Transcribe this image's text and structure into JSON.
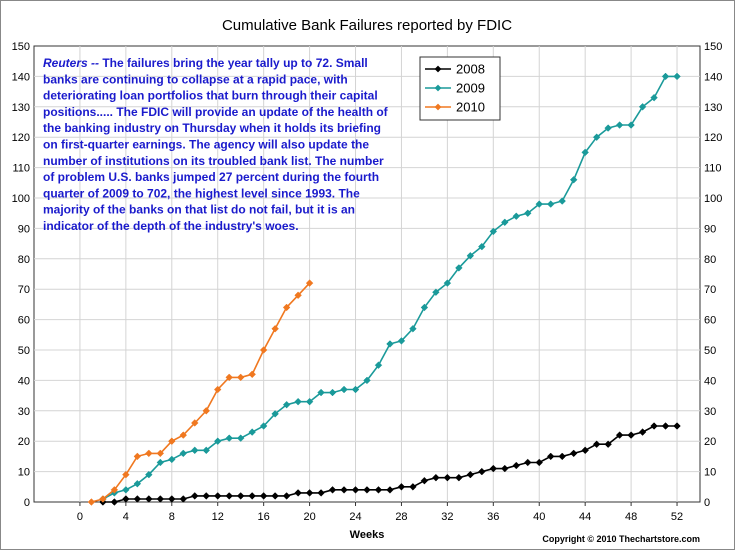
{
  "chart_data": {
    "type": "line",
    "title": "Cumulative Bank Failures reported by FDIC",
    "xlabel": "Weeks",
    "ylabel": "",
    "xlim": [
      -4,
      54
    ],
    "ylim": [
      0,
      150
    ],
    "x_ticks": [
      0,
      4,
      8,
      12,
      16,
      20,
      24,
      28,
      32,
      36,
      40,
      44,
      48,
      52
    ],
    "y_ticks": [
      0,
      10,
      20,
      30,
      40,
      50,
      60,
      70,
      80,
      90,
      100,
      110,
      120,
      130,
      140,
      150
    ],
    "grid": true,
    "legend_position": "top-center",
    "annotation": {
      "source": "Reuters --",
      "lines": [
        "The failures bring the year tally up to 72.  Small",
        "banks are continuing to collapse at a rapid pace, with",
        "deteriorating loan portfolios that burn through their capital",
        "positions.....  The FDIC will provide an update of the health of",
        "the banking industry on Thursday when it holds its briefing",
        "on first-quarter earnings.  The agency will also update the",
        "number of institutions on its troubled bank list.  The number",
        "of problem U.S. banks jumped 27 percent during the fourth",
        "quarter of 2009 to 702, the highest level since 1993.  The",
        "majority of the banks on that list do not fail, but it is an",
        "indicator of the depth of the industry's woes."
      ]
    },
    "copyright": "Copyright © 2010 Thechartstore.com",
    "series": [
      {
        "name": "2008",
        "color": "#000000",
        "points": [
          [
            2,
            0
          ],
          [
            3,
            0
          ],
          [
            4,
            1
          ],
          [
            5,
            1
          ],
          [
            6,
            1
          ],
          [
            7,
            1
          ],
          [
            8,
            1
          ],
          [
            9,
            1
          ],
          [
            10,
            2
          ],
          [
            11,
            2
          ],
          [
            12,
            2
          ],
          [
            13,
            2
          ],
          [
            14,
            2
          ],
          [
            15,
            2
          ],
          [
            16,
            2
          ],
          [
            17,
            2
          ],
          [
            18,
            2
          ],
          [
            19,
            3
          ],
          [
            20,
            3
          ],
          [
            21,
            3
          ],
          [
            22,
            4
          ],
          [
            23,
            4
          ],
          [
            24,
            4
          ],
          [
            25,
            4
          ],
          [
            26,
            4
          ],
          [
            27,
            4
          ],
          [
            28,
            5
          ],
          [
            29,
            5
          ],
          [
            30,
            7
          ],
          [
            31,
            8
          ],
          [
            32,
            8
          ],
          [
            33,
            8
          ],
          [
            34,
            9
          ],
          [
            35,
            10
          ],
          [
            36,
            11
          ],
          [
            37,
            11
          ],
          [
            38,
            12
          ],
          [
            39,
            13
          ],
          [
            40,
            13
          ],
          [
            41,
            15
          ],
          [
            42,
            15
          ],
          [
            43,
            16
          ],
          [
            44,
            17
          ],
          [
            45,
            19
          ],
          [
            46,
            19
          ],
          [
            47,
            22
          ],
          [
            48,
            22
          ],
          [
            49,
            23
          ],
          [
            50,
            25
          ],
          [
            51,
            25
          ],
          [
            52,
            25
          ]
        ]
      },
      {
        "name": "2009",
        "color": "#1a9a9a",
        "points": [
          [
            2,
            1
          ],
          [
            3,
            3
          ],
          [
            4,
            4
          ],
          [
            5,
            6
          ],
          [
            6,
            9
          ],
          [
            7,
            13
          ],
          [
            8,
            14
          ],
          [
            9,
            16
          ],
          [
            10,
            17
          ],
          [
            11,
            17
          ],
          [
            12,
            20
          ],
          [
            13,
            21
          ],
          [
            14,
            21
          ],
          [
            15,
            23
          ],
          [
            16,
            25
          ],
          [
            17,
            29
          ],
          [
            18,
            32
          ],
          [
            19,
            33
          ],
          [
            20,
            33
          ],
          [
            21,
            36
          ],
          [
            22,
            36
          ],
          [
            23,
            37
          ],
          [
            24,
            37
          ],
          [
            25,
            40
          ],
          [
            26,
            45
          ],
          [
            27,
            52
          ],
          [
            28,
            53
          ],
          [
            29,
            57
          ],
          [
            30,
            64
          ],
          [
            31,
            69
          ],
          [
            32,
            72
          ],
          [
            33,
            77
          ],
          [
            34,
            81
          ],
          [
            35,
            84
          ],
          [
            36,
            89
          ],
          [
            37,
            92
          ],
          [
            38,
            94
          ],
          [
            39,
            95
          ],
          [
            40,
            98
          ],
          [
            41,
            98
          ],
          [
            42,
            99
          ],
          [
            43,
            106
          ],
          [
            44,
            115
          ],
          [
            45,
            120
          ],
          [
            46,
            123
          ],
          [
            47,
            124
          ],
          [
            48,
            124
          ],
          [
            49,
            130
          ],
          [
            50,
            133
          ],
          [
            51,
            140
          ],
          [
            52,
            140
          ]
        ]
      },
      {
        "name": "2010",
        "color": "#f07820",
        "points": [
          [
            1,
            0
          ],
          [
            2,
            1
          ],
          [
            3,
            4
          ],
          [
            4,
            9
          ],
          [
            5,
            15
          ],
          [
            6,
            16
          ],
          [
            7,
            16
          ],
          [
            8,
            20
          ],
          [
            9,
            22
          ],
          [
            10,
            26
          ],
          [
            11,
            30
          ],
          [
            12,
            37
          ],
          [
            13,
            41
          ],
          [
            14,
            41
          ],
          [
            15,
            42
          ],
          [
            16,
            50
          ],
          [
            17,
            57
          ],
          [
            18,
            64
          ],
          [
            19,
            68
          ],
          [
            20,
            72
          ]
        ]
      }
    ]
  }
}
